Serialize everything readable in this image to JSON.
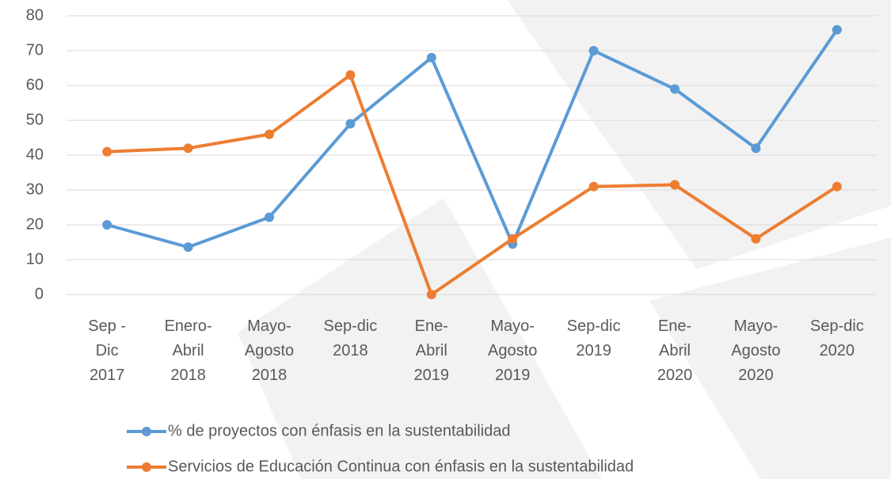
{
  "chart_data": {
    "type": "line",
    "categories": [
      "Sep -\nDic\n2017",
      "Enero-\nAbril\n2018",
      "Mayo-\nAgosto\n2018",
      "Sep-dic\n2018",
      "Ene-\nAbril\n2019",
      "Mayo-\nAgosto\n2019",
      "Sep-dic\n2019",
      "Ene-\nAbril\n2020",
      "Mayo-\nAgosto\n2020",
      "Sep-dic\n2020"
    ],
    "series": [
      {
        "name": "% de proyectos con énfasis en la sustentabilidad",
        "color": "#5b9bd5",
        "values": [
          20,
          13.6,
          22.2,
          49,
          68,
          14.5,
          70,
          59,
          42,
          76
        ]
      },
      {
        "name": "Servicios de Educación Continua con énfasis en la sustentabilidad",
        "color": "#ed7d31",
        "values": [
          41,
          42,
          46,
          63,
          0,
          16,
          31,
          31.5,
          16,
          31
        ]
      }
    ],
    "ylim": [
      0,
      80
    ],
    "yticks": [
      0,
      10,
      20,
      30,
      40,
      50,
      60,
      70,
      80
    ],
    "grid": true,
    "legend": "bottom"
  }
}
